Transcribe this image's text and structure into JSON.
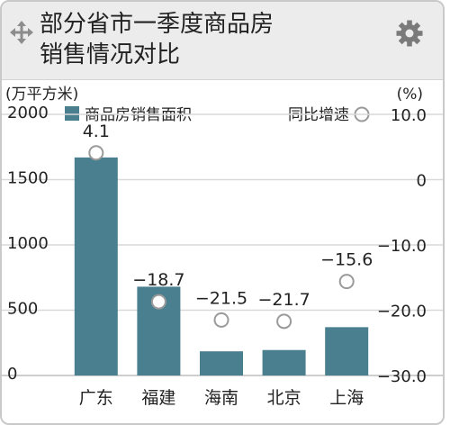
{
  "header": {
    "title_line1": "部分省市一季度商品房",
    "title_line2": "销售情况对比",
    "move_icon": "move-arrows-icon",
    "settings_icon": "gear-icon"
  },
  "colors": {
    "bar": "#4a7f90",
    "marker_stroke": "#9a9a9a",
    "grid": "#d9d9d9",
    "header_bg": "#ececec"
  },
  "chart_data": {
    "type": "bar",
    "categories": [
      "广东",
      "福建",
      "海南",
      "北京",
      "上海"
    ],
    "series": [
      {
        "name": "商品房销售面积",
        "type": "bar",
        "axis": "left",
        "values": [
          1670,
          680,
          185,
          195,
          370
        ]
      },
      {
        "name": "同比增速",
        "type": "scatter",
        "axis": "right",
        "values": [
          4.1,
          -18.7,
          -21.5,
          -21.7,
          -15.6
        ],
        "labels": [
          "4.1",
          "−18.7",
          "−21.5",
          "−21.7",
          "−15.6"
        ]
      }
    ],
    "y_left": {
      "unit": "(万平方米)",
      "ylim": [
        0,
        2000
      ],
      "ticks": [
        "0",
        "500",
        "1000",
        "1500",
        "2000"
      ],
      "tick_values": [
        0,
        500,
        1000,
        1500,
        2000
      ]
    },
    "y_right": {
      "unit": "(%)",
      "ylim": [
        -30,
        10
      ],
      "ticks": [
        "−30.0",
        "−20.0",
        "−10.0",
        "0",
        "10.0"
      ],
      "tick_values": [
        -30,
        -20,
        -10,
        0,
        10
      ]
    },
    "grid": true,
    "legend_position": "top"
  }
}
